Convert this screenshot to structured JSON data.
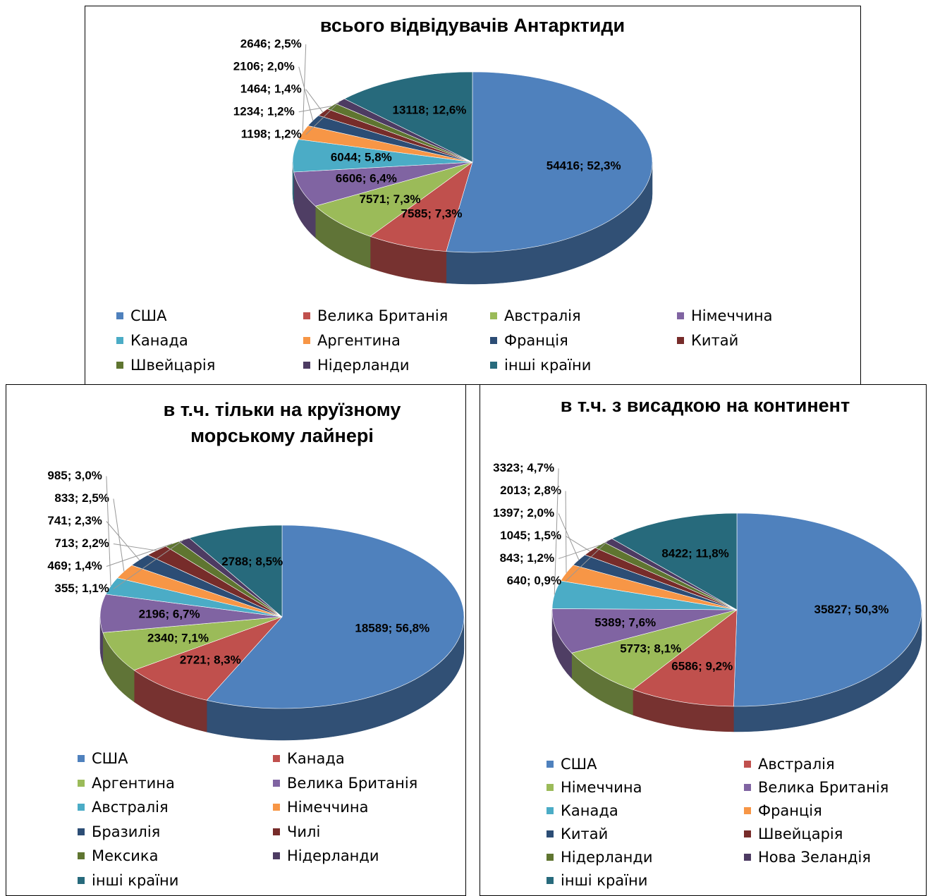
{
  "chart_data": [
    {
      "type": "pie",
      "title": "всього відвідувачів Антарктиди",
      "categories": [
        "США",
        "Велика Британія",
        "Австралія",
        "Німеччина",
        "Канада",
        "Аргентина",
        "Франція",
        "Китай",
        "Швейцарія",
        "Нідерланди",
        "інші країни"
      ],
      "values": [
        54416,
        7585,
        7571,
        6606,
        6044,
        2646,
        2106,
        1464,
        1234,
        1198,
        13118
      ],
      "value_labels": [
        "54416; 52,3%",
        "7585; 7,3%",
        "7571; 7,3%",
        "6606; 6,4%",
        "6044; 5,8%",
        "2646; 2,5%",
        "2106; 2,0%",
        "1464; 1,4%",
        "1234; 1,2%",
        "1198; 1,2%",
        "13118; 12,6%"
      ],
      "colors": [
        "#4f81bd",
        "#c0504d",
        "#9bbb59",
        "#8064a2",
        "#4bacc6",
        "#f79646",
        "#2c4d75",
        "#772c2a",
        "#5f7530",
        "#4d3b62",
        "#276a7c"
      ]
    },
    {
      "type": "pie",
      "title": "в т.ч. тільки на круїзному морському лайнері",
      "categories": [
        "США",
        "Канада",
        "Аргентина",
        "Велика Британія",
        "Австралія",
        "Німеччина",
        "Бразилія",
        "Чилі",
        "Мексика",
        "Нідерланди",
        "інші країни"
      ],
      "values": [
        18589,
        2721,
        2340,
        2196,
        985,
        833,
        741,
        713,
        469,
        355,
        2788
      ],
      "value_labels": [
        "18589; 56,8%",
        "2721; 8,3%",
        "2340; 7,1%",
        "2196; 6,7%",
        "985; 3,0%",
        "833; 2,5%",
        "741; 2,3%",
        "713; 2,2%",
        "469; 1,4%",
        "355; 1,1%",
        "2788; 8,5%"
      ],
      "colors": [
        "#4f81bd",
        "#c0504d",
        "#9bbb59",
        "#8064a2",
        "#4bacc6",
        "#f79646",
        "#2c4d75",
        "#772c2a",
        "#5f7530",
        "#4d3b62",
        "#276a7c"
      ]
    },
    {
      "type": "pie",
      "title": "в т.ч. з висадкою на континент",
      "categories": [
        "США",
        "Австралія",
        "Німеччина",
        "Велика Британія",
        "Канада",
        "Франція",
        "Китай",
        "Швейцарія",
        "Нідерланди",
        "Нова Зеландія",
        "інші країни"
      ],
      "values": [
        35827,
        6586,
        5773,
        5389,
        3323,
        2013,
        1397,
        1045,
        843,
        640,
        8422
      ],
      "value_labels": [
        "35827; 50,3%",
        "6586; 9,2%",
        "5773; 8,1%",
        "5389; 7,6%",
        "3323; 4,7%",
        "2013; 2,8%",
        "1397; 2,0%",
        "1045; 1,5%",
        "843; 1,2%",
        "640; 0,9%",
        "8422; 11,8%"
      ],
      "colors": [
        "#4f81bd",
        "#c0504d",
        "#9bbb59",
        "#8064a2",
        "#4bacc6",
        "#f79646",
        "#2c4d75",
        "#772c2a",
        "#5f7530",
        "#4d3b62",
        "#276a7c"
      ]
    }
  ]
}
